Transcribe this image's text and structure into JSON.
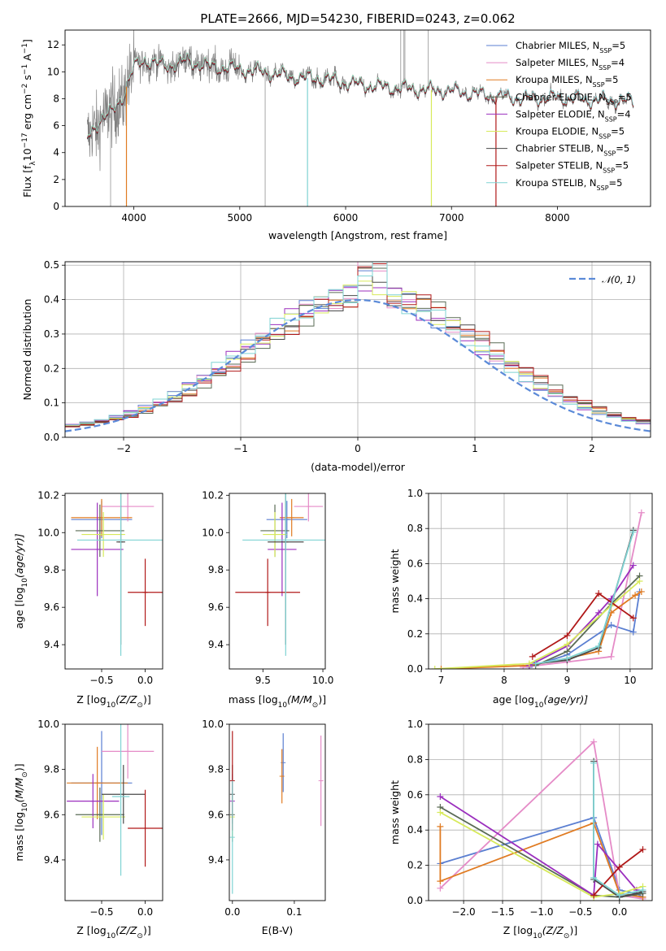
{
  "colors": {
    "chabrier_miles": "#5b7fd1",
    "salpeter_miles": "#e58bc7",
    "kroupa_miles": "#e07b22",
    "chabrier_elodie": "#5a6b55",
    "salpeter_elodie": "#9b2fbe",
    "kroupa_elodie": "#d7ea5a",
    "chabrier_stelib": "#4a4a4a",
    "salpeter_stelib": "#b01818",
    "kroupa_stelib": "#7fd3d3",
    "data": "#808080",
    "normal_curve": "#5b8ad8",
    "grid": "#b0b0b0"
  },
  "chart_data": [
    {
      "id": "spectrum",
      "type": "line",
      "title": "PLATE=2666, MJD=54230, FIBERID=0243, z=0.062",
      "xlabel": "wavelength [Angstrom, rest frame]",
      "ylabel": "Flux [f",
      "ylabel_parts": {
        "a": "Flux [f",
        "sub1": "λ",
        "b": "10",
        "sup1": "−17",
        "c": " erg cm",
        "sup2": "−2",
        "d": " s",
        "sup3": "−1",
        "e": " A",
        "sup4": "−1",
        "f": "]"
      },
      "xlim": [
        3350,
        8880
      ],
      "ylim": [
        0,
        13.1
      ],
      "xticks": [
        4000,
        5000,
        6000,
        7000,
        8000
      ],
      "yticks": [
        0,
        2,
        4,
        6,
        8,
        10,
        12
      ],
      "grid": false,
      "legend_position": "top-right",
      "legend": [
        {
          "name": "Chabrier MILES, N",
          "sub": "SSP",
          "suffix": "=5",
          "color_key": "chabrier_miles"
        },
        {
          "name": "Salpeter MILES, N",
          "sub": "SSP",
          "suffix": "=4",
          "color_key": "salpeter_miles"
        },
        {
          "name": "Kroupa MILES, N",
          "sub": "SSP",
          "suffix": "=5",
          "color_key": "kroupa_miles"
        },
        {
          "name": "Chabrier ELODIE, N",
          "sub": "SSP",
          "suffix": "=5",
          "color_key": "chabrier_elodie"
        },
        {
          "name": "Salpeter ELODIE, N",
          "sub": "SSP",
          "suffix": "=4",
          "color_key": "salpeter_elodie"
        },
        {
          "name": "Kroupa ELODIE, N",
          "sub": "SSP",
          "suffix": "=5",
          "color_key": "kroupa_elodie"
        },
        {
          "name": "Chabrier STELIB, N",
          "sub": "SSP",
          "suffix": "=5",
          "color_key": "chabrier_stelib"
        },
        {
          "name": "Salpeter STELIB, N",
          "sub": "SSP",
          "suffix": "=5",
          "color_key": "salpeter_stelib"
        },
        {
          "name": "Kroupa STELIB, N",
          "sub": "SSP",
          "suffix": "=5",
          "color_key": "kroupa_stelib"
        }
      ],
      "continuum": {
        "x": [
          3560,
          3620,
          3700,
          3800,
          3900,
          4000,
          4100,
          4300,
          4500,
          4700,
          4900,
          5100,
          5300,
          5500,
          5800,
          6000,
          6200,
          6500,
          6700,
          7000,
          7200,
          7400,
          7700,
          8000,
          8300,
          8500,
          8700
        ],
        "y": [
          5.0,
          5.8,
          6.6,
          7.0,
          8.3,
          10.3,
          10.9,
          10.4,
          10.8,
          10.4,
          10.3,
          10.1,
          9.9,
          9.6,
          9.5,
          9.2,
          9.0,
          8.8,
          8.7,
          8.6,
          8.4,
          8.2,
          8.0,
          8.1,
          7.9,
          7.9,
          7.8
        ]
      },
      "models_end": {
        "miles": 7420,
        "elodie": 6810,
        "stelib": 8720
      },
      "drops": [
        {
          "x": 3930,
          "series": "kroupa_miles"
        },
        {
          "x": 5640,
          "series": "kroupa_stelib"
        },
        {
          "x": 6810,
          "series": "kroupa_elodie"
        },
        {
          "x": 7420,
          "series": "salpeter_stelib"
        }
      ],
      "data_spikes": [
        3780,
        5240,
        6520,
        6550,
        6560,
        6780
      ]
    },
    {
      "id": "residuals",
      "type": "histogram",
      "xlabel": "(data-model)/error",
      "ylabel": "Normed distribution",
      "xlim": [
        -2.5,
        2.5
      ],
      "ylim": [
        0,
        0.51
      ],
      "xticks": [
        -2,
        -1,
        0,
        1,
        2
      ],
      "yticks": [
        0.0,
        0.1,
        0.2,
        0.3,
        0.4,
        0.5
      ],
      "grid": true,
      "legend_position": "top-right",
      "legend": [
        {
          "name": "𝒩(0, 1)",
          "color_key": "normal_curve"
        }
      ],
      "bins": 40
    },
    {
      "id": "age_vs_z",
      "type": "errorbar",
      "xlabel": "Z [log",
      "xlabel_parts": {
        "a": "Z [log",
        "sub": "10",
        "b": "(Z/Z",
        "sub2": "⊙",
        "c": ")]"
      },
      "ylabel": "age  [log",
      "ylabel_parts": {
        "a": "age  [log",
        "sub": "10",
        "b": "(age/yr)]"
      },
      "xlim": [
        -0.92,
        0.2
      ],
      "ylim": [
        9.27,
        10.21
      ],
      "xticks": [
        -0.5,
        0.0
      ],
      "yticks": [
        9.4,
        9.6,
        9.8,
        10.0,
        10.2
      ],
      "points": [
        {
          "key": "chabrier_miles",
          "x": -0.5,
          "xerr": 0.35,
          "y": 10.07,
          "yerr": 0.1
        },
        {
          "key": "salpeter_miles",
          "x": -0.2,
          "xerr": 0.3,
          "y": 10.14,
          "yerr": 0.08
        },
        {
          "key": "kroupa_miles",
          "x": -0.5,
          "xerr": 0.35,
          "y": 10.08,
          "yerr": 0.1
        },
        {
          "key": "chabrier_elodie",
          "x": -0.52,
          "xerr": 0.28,
          "y": 10.01,
          "yerr": 0.14
        },
        {
          "key": "salpeter_elodie",
          "x": -0.55,
          "xerr": 0.3,
          "y": 9.91,
          "yerr": 0.25
        },
        {
          "key": "kroupa_elodie",
          "x": -0.48,
          "xerr": 0.25,
          "y": 9.99,
          "yerr": 0.12
        },
        {
          "key": "chabrier_stelib",
          "x": -0.28,
          "xerr": 0.05,
          "y": 9.95,
          "yerr": 0.55
        },
        {
          "key": "salpeter_stelib",
          "x": 0.0,
          "xerr": 0.2,
          "y": 9.68,
          "yerr": 0.18
        },
        {
          "key": "kroupa_stelib",
          "x": -0.28,
          "xerr": 0.5,
          "y": 9.96,
          "yerr": 0.62
        }
      ]
    },
    {
      "id": "age_vs_mass",
      "type": "errorbar",
      "xlabel": "mass [log",
      "xlabel_parts": {
        "a": "mass [log",
        "sub": "10",
        "b": "(M/M",
        "sub2": "⊙",
        "c": ")]"
      },
      "ylabel": "",
      "xlim": [
        9.22,
        10.02
      ],
      "ylim": [
        9.27,
        10.21
      ],
      "xticks": [
        9.5,
        10.0
      ],
      "yticks": [
        9.4,
        9.6,
        9.8,
        10.0,
        10.2
      ],
      "points": [
        {
          "key": "chabrier_miles",
          "x": 9.7,
          "xerr": 0.17,
          "y": 10.07,
          "yerr": 0.1
        },
        {
          "key": "salpeter_miles",
          "x": 9.88,
          "xerr": 0.12,
          "y": 10.14,
          "yerr": 0.08
        },
        {
          "key": "kroupa_miles",
          "x": 9.74,
          "xerr": 0.1,
          "y": 10.08,
          "yerr": 0.1
        },
        {
          "key": "chabrier_elodie",
          "x": 9.6,
          "xerr": 0.12,
          "y": 10.01,
          "yerr": 0.14
        },
        {
          "key": "salpeter_elodie",
          "x": 9.66,
          "xerr": 0.12,
          "y": 9.91,
          "yerr": 0.25
        },
        {
          "key": "kroupa_elodie",
          "x": 9.6,
          "xerr": 0.1,
          "y": 9.99,
          "yerr": 0.12
        },
        {
          "key": "chabrier_stelib",
          "x": 9.69,
          "xerr": 0.15,
          "y": 9.95,
          "yerr": 0.55
        },
        {
          "key": "salpeter_stelib",
          "x": 9.54,
          "xerr": 0.27,
          "y": 9.68,
          "yerr": 0.18
        },
        {
          "key": "kroupa_stelib",
          "x": 9.69,
          "xerr": 0.36,
          "y": 9.96,
          "yerr": 0.62
        }
      ]
    },
    {
      "id": "weight_vs_age",
      "type": "line",
      "xlabel": "age  [log",
      "xlabel_parts": {
        "a": "age  [log",
        "sub": "10",
        "b": "(age/yr)]"
      },
      "ylabel": "mass weight",
      "xlim": [
        6.8,
        10.35
      ],
      "ylim": [
        0,
        1.0
      ],
      "xticks": [
        7,
        8,
        9,
        10
      ],
      "yticks": [
        0.0,
        0.2,
        0.4,
        0.6,
        0.8,
        1.0
      ],
      "grid": true,
      "series": [
        {
          "key": "chabrier_miles",
          "x": [
            8.4,
            9.0,
            9.7,
            10.05,
            10.15
          ],
          "y": [
            0.01,
            0.08,
            0.25,
            0.21,
            0.44
          ]
        },
        {
          "key": "salpeter_miles",
          "x": [
            8.3,
            9.0,
            9.7,
            10.18
          ],
          "y": [
            0.01,
            0.04,
            0.07,
            0.89
          ]
        },
        {
          "key": "kroupa_miles",
          "x": [
            7.0,
            8.4,
            9.0,
            9.5,
            9.7,
            10.08,
            10.18
          ],
          "y": [
            0.0,
            0.02,
            0.06,
            0.1,
            0.32,
            0.42,
            0.44
          ]
        },
        {
          "key": "chabrier_elodie",
          "x": [
            8.5,
            9.0,
            9.7,
            10.15
          ],
          "y": [
            0.02,
            0.1,
            0.37,
            0.53
          ]
        },
        {
          "key": "salpeter_elodie",
          "x": [
            8.4,
            9.0,
            9.5,
            9.7,
            10.05
          ],
          "y": [
            0.02,
            0.13,
            0.32,
            0.4,
            0.59
          ]
        },
        {
          "key": "kroupa_elodie",
          "x": [
            6.9,
            8.4,
            9.0,
            9.7,
            10.15
          ],
          "y": [
            0.0,
            0.03,
            0.14,
            0.36,
            0.5
          ]
        },
        {
          "key": "chabrier_stelib",
          "x": [
            8.5,
            9.0,
            9.5,
            10.05
          ],
          "y": [
            0.03,
            0.05,
            0.12,
            0.79
          ]
        },
        {
          "key": "salpeter_stelib",
          "x": [
            8.45,
            9.0,
            9.5,
            10.05
          ],
          "y": [
            0.07,
            0.19,
            0.43,
            0.29
          ]
        },
        {
          "key": "kroupa_stelib",
          "x": [
            8.5,
            9.0,
            9.5,
            10.05
          ],
          "y": [
            0.03,
            0.06,
            0.13,
            0.78
          ]
        }
      ]
    },
    {
      "id": "mass_vs_z",
      "type": "errorbar",
      "xlabel": "Z [log",
      "xlabel_parts": {
        "a": "Z [log",
        "sub": "10",
        "b": "(Z/Z",
        "sub2": "⊙",
        "c": ")]"
      },
      "ylabel": "mass [log",
      "ylabel_parts": {
        "a": "mass [log",
        "sub": "10",
        "b": "(M/M",
        "sub2": "⊙",
        "c": ")]"
      },
      "xlim": [
        -0.92,
        0.2
      ],
      "ylim": [
        9.22,
        10.0
      ],
      "xticks": [
        -0.5,
        0.0
      ],
      "yticks": [
        9.4,
        9.6,
        9.8,
        10.0
      ],
      "points": [
        {
          "key": "chabrier_miles",
          "x": -0.5,
          "xerr": 0.35,
          "y": 9.74,
          "yerr": 0.23
        },
        {
          "key": "salpeter_miles",
          "x": -0.2,
          "xerr": 0.3,
          "y": 9.88,
          "yerr": 0.12
        },
        {
          "key": "kroupa_miles",
          "x": -0.55,
          "xerr": 0.35,
          "y": 9.74,
          "yerr": 0.16
        },
        {
          "key": "chabrier_elodie",
          "x": -0.52,
          "xerr": 0.28,
          "y": 9.6,
          "yerr": 0.12
        },
        {
          "key": "salpeter_elodie",
          "x": -0.6,
          "xerr": 0.3,
          "y": 9.66,
          "yerr": 0.12
        },
        {
          "key": "kroupa_elodie",
          "x": -0.48,
          "xerr": 0.25,
          "y": 9.59,
          "yerr": 0.1
        },
        {
          "key": "chabrier_stelib",
          "x": -0.25,
          "xerr": 0.25,
          "y": 9.69,
          "yerr": 0.13
        },
        {
          "key": "salpeter_stelib",
          "x": 0.0,
          "xerr": 0.2,
          "y": 9.54,
          "yerr": 0.17
        },
        {
          "key": "kroupa_stelib",
          "x": -0.28,
          "xerr": 0.1,
          "y": 9.68,
          "yerr": 0.35
        }
      ]
    },
    {
      "id": "mass_vs_ebv",
      "type": "errorbar",
      "xlabel": "E(B-V)",
      "ylabel": "",
      "xlim": [
        -0.005,
        0.15
      ],
      "ylim": [
        9.22,
        10.0
      ],
      "xticks": [
        0.0,
        0.1
      ],
      "yticks": [
        9.4,
        9.6,
        9.8,
        10.0
      ],
      "points": [
        {
          "key": "chabrier_miles",
          "x": 0.082,
          "xerr": 0.0,
          "y": 9.83,
          "yerr": 0.13
        },
        {
          "key": "salpeter_miles",
          "x": 0.143,
          "xerr": 0.0,
          "y": 9.75,
          "yerr": 0.2
        },
        {
          "key": "kroupa_miles",
          "x": 0.08,
          "xerr": 0.0,
          "y": 9.77,
          "yerr": 0.12
        },
        {
          "key": "chabrier_elodie",
          "x": 0.0,
          "xerr": 0.0,
          "y": 9.6,
          "yerr": 0.12
        },
        {
          "key": "salpeter_elodie",
          "x": 0.0,
          "xerr": 0.0,
          "y": 9.66,
          "yerr": 0.12
        },
        {
          "key": "kroupa_elodie",
          "x": 0.0,
          "xerr": 0.0,
          "y": 9.59,
          "yerr": 0.1
        },
        {
          "key": "chabrier_stelib",
          "x": 0.0,
          "xerr": 0.0,
          "y": 9.69,
          "yerr": 0.13
        },
        {
          "key": "salpeter_stelib",
          "x": 0.0,
          "xerr": 0.0,
          "y": 9.75,
          "yerr": 0.22
        },
        {
          "key": "kroupa_stelib",
          "x": 0.0,
          "xerr": 0.0,
          "y": 9.5,
          "yerr": 0.25
        }
      ]
    },
    {
      "id": "weight_vs_z",
      "type": "line",
      "xlabel": "Z [log",
      "xlabel_parts": {
        "a": "Z [log",
        "sub": "10",
        "b": "(Z/Z",
        "sub2": "⊙",
        "c": ")]"
      },
      "ylabel": "mass weight",
      "xlim": [
        -2.45,
        0.42
      ],
      "ylim": [
        0,
        1.0
      ],
      "xticks": [
        -2.0,
        -1.5,
        -1.0,
        -0.5,
        0.0
      ],
      "yticks": [
        0.0,
        0.2,
        0.4,
        0.6,
        0.8,
        1.0
      ],
      "grid": true,
      "series": [
        {
          "key": "chabrier_miles",
          "x": [
            -2.3,
            -0.33,
            0.0,
            0.22,
            0.3
          ],
          "y": [
            0.21,
            0.47,
            0.06,
            0.04,
            0.02
          ]
        },
        {
          "key": "salpeter_miles",
          "x": [
            -2.3,
            -0.33,
            0.0,
            0.3
          ],
          "y": [
            0.07,
            0.9,
            0.03,
            0.01
          ]
        },
        {
          "key": "kroupa_miles",
          "x": [
            -2.3,
            -2.3,
            -0.33,
            0.0,
            0.3
          ],
          "y": [
            0.42,
            0.11,
            0.44,
            0.04,
            0.02
          ]
        },
        {
          "key": "chabrier_elodie",
          "x": [
            -2.3,
            -0.33,
            0.0,
            0.3
          ],
          "y": [
            0.53,
            0.03,
            0.02,
            0.04
          ]
        },
        {
          "key": "salpeter_elodie",
          "x": [
            -2.3,
            -0.33,
            -0.28,
            0.22
          ],
          "y": [
            0.59,
            0.03,
            0.32,
            0.06
          ]
        },
        {
          "key": "kroupa_elodie",
          "x": [
            -2.3,
            -0.33,
            0.0,
            0.3
          ],
          "y": [
            0.5,
            0.02,
            0.04,
            0.08
          ]
        },
        {
          "key": "chabrier_stelib",
          "x": [
            -0.33,
            -0.33,
            0.0,
            0.3
          ],
          "y": [
            0.79,
            0.12,
            0.02,
            0.05
          ]
        },
        {
          "key": "salpeter_stelib",
          "x": [
            -0.33,
            0.0,
            0.3
          ],
          "y": [
            0.03,
            0.19,
            0.29
          ]
        },
        {
          "key": "kroupa_stelib",
          "x": [
            -0.33,
            -0.33,
            0.0,
            0.3
          ],
          "y": [
            0.78,
            0.13,
            0.03,
            0.06
          ]
        }
      ]
    }
  ]
}
